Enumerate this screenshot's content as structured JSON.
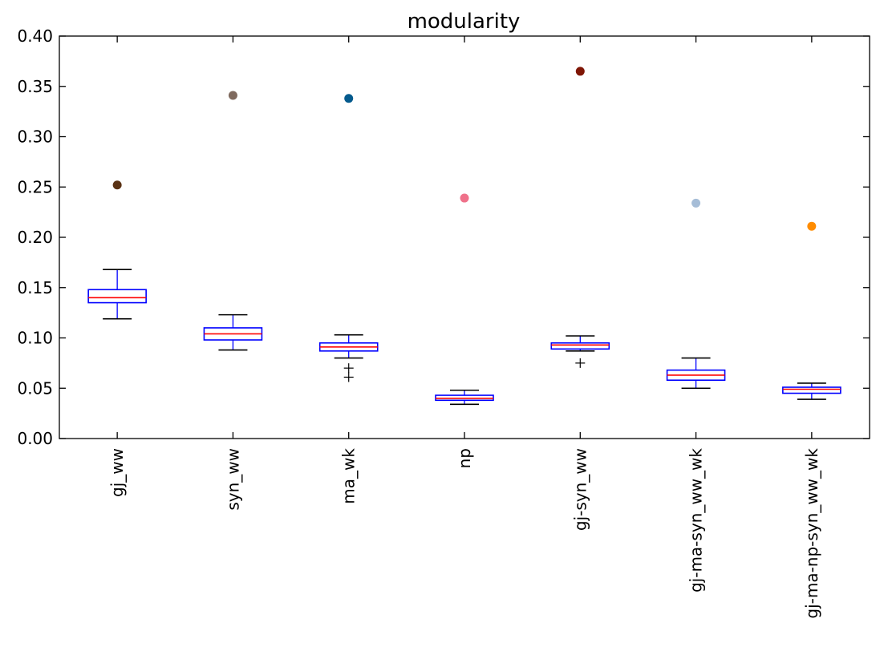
{
  "chart_data": {
    "type": "box",
    "title": "modularity",
    "xlabel": "",
    "ylabel": "",
    "ylim": [
      0,
      0.4
    ],
    "yticks": [
      0.0,
      0.05,
      0.1,
      0.15,
      0.2,
      0.25,
      0.3,
      0.35,
      0.4
    ],
    "ytick_labels": [
      "0.00",
      "0.05",
      "0.10",
      "0.15",
      "0.20",
      "0.25",
      "0.30",
      "0.35",
      "0.40"
    ],
    "grid": false,
    "categories": [
      "gj_ww",
      "syn_ww",
      "ma_wk",
      "np",
      "gj-syn_ww",
      "gj-ma-syn_ww_wk",
      "gj-ma-np-syn_ww_wk"
    ],
    "boxes": [
      {
        "whisker_low": 0.119,
        "q1": 0.135,
        "median": 0.14,
        "q3": 0.148,
        "whisker_high": 0.168,
        "fliers": []
      },
      {
        "whisker_low": 0.088,
        "q1": 0.098,
        "median": 0.104,
        "q3": 0.11,
        "whisker_high": 0.123,
        "fliers": []
      },
      {
        "whisker_low": 0.08,
        "q1": 0.087,
        "median": 0.091,
        "q3": 0.095,
        "whisker_high": 0.103,
        "fliers": [
          0.07,
          0.061
        ]
      },
      {
        "whisker_low": 0.034,
        "q1": 0.038,
        "median": 0.04,
        "q3": 0.043,
        "whisker_high": 0.048,
        "fliers": []
      },
      {
        "whisker_low": 0.087,
        "q1": 0.089,
        "median": 0.093,
        "q3": 0.095,
        "whisker_high": 0.102,
        "fliers": [
          0.075
        ]
      },
      {
        "whisker_low": 0.05,
        "q1": 0.058,
        "median": 0.063,
        "q3": 0.068,
        "whisker_high": 0.08,
        "fliers": []
      },
      {
        "whisker_low": 0.039,
        "q1": 0.045,
        "median": 0.049,
        "q3": 0.051,
        "whisker_high": 0.055,
        "fliers": []
      }
    ],
    "highlight_points": [
      {
        "value": 0.252,
        "color": "#5a3214"
      },
      {
        "value": 0.341,
        "color": "#7f6a5e"
      },
      {
        "value": 0.338,
        "color": "#045a8d"
      },
      {
        "value": 0.239,
        "color": "#ef718a"
      },
      {
        "value": 0.365,
        "color": "#7f1605"
      },
      {
        "value": 0.234,
        "color": "#a6bdd7"
      },
      {
        "value": 0.211,
        "color": "#ff8c00"
      }
    ],
    "colors": {
      "box": "#0000ff",
      "median": "#ff0000",
      "whisker": "#000000",
      "cap": "#000000",
      "flier": "#000000",
      "axes": "#000000"
    }
  }
}
